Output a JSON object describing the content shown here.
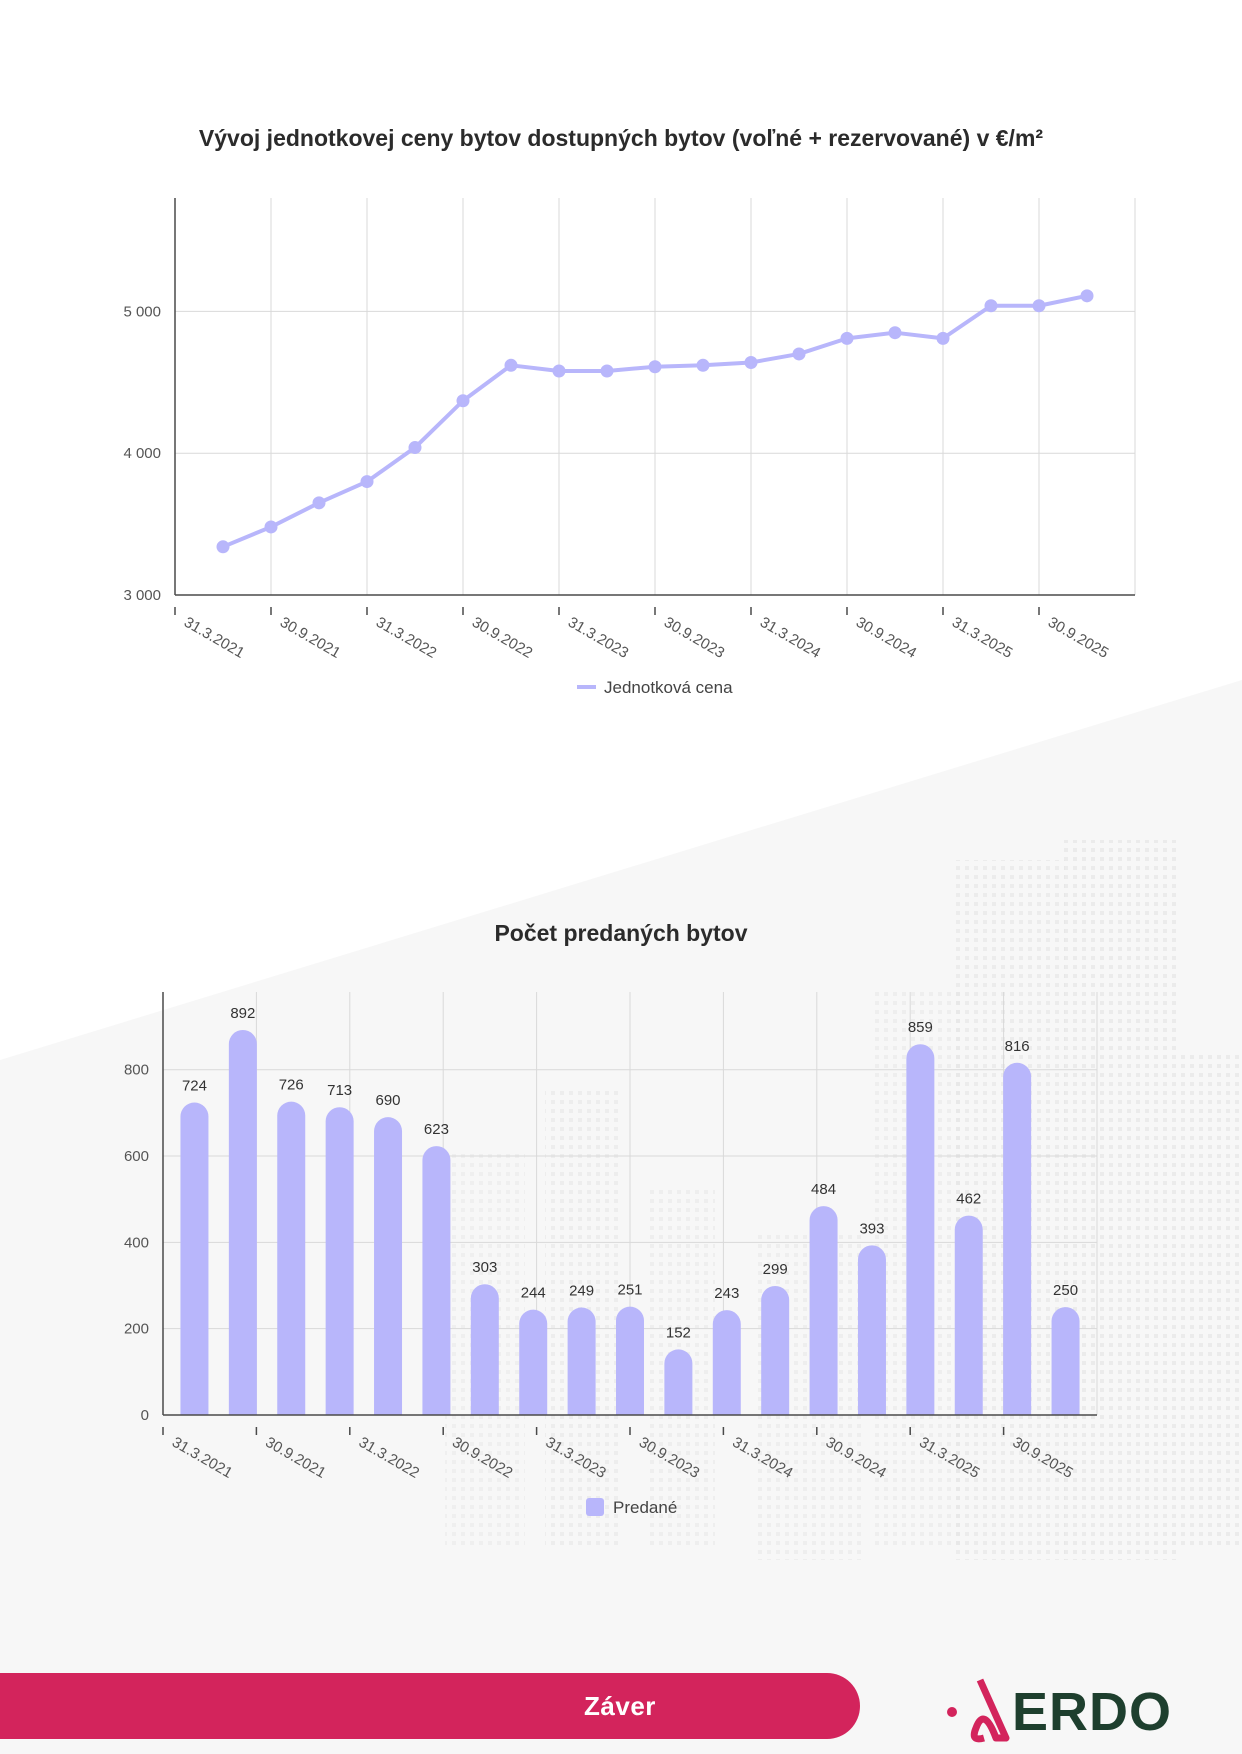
{
  "colors": {
    "series": "#b8b6fb",
    "grid": "#d9d9d9",
    "axis": "#4a4a4a",
    "tick_text": "#555555",
    "label_text": "#333333",
    "footer": "#d3245c",
    "logo_mark": "#d3245c",
    "logo_text": "#1e3f2e"
  },
  "chart_data": [
    {
      "type": "line",
      "title": "Vývoj jednotkovej ceny bytov dostupných bytov (voľné + rezervované) v €/m²",
      "xlabel": "",
      "ylabel": "",
      "x_tick_labels": [
        "31.3.2021",
        "30.9.2021",
        "31.3.2022",
        "30.9.2022",
        "31.3.2023",
        "30.9.2023",
        "31.3.2024",
        "30.9.2024",
        "31.3.2025",
        "30.9.2025"
      ],
      "y_tick_labels": [
        "3 000",
        "4 000",
        "5 000"
      ],
      "y_ticks": [
        3000,
        4000,
        5000
      ],
      "ylim": [
        3000,
        5800
      ],
      "grid": true,
      "legend_position": "bottom",
      "series": [
        {
          "name": "Jednotková cena",
          "values": [
            3340,
            3480,
            3650,
            3800,
            4040,
            4370,
            4620,
            4580,
            4580,
            4610,
            4620,
            4640,
            4700,
            4810,
            4850,
            4810,
            5040,
            5040,
            5110
          ]
        }
      ]
    },
    {
      "type": "bar",
      "title": "Počet predaných bytov",
      "xlabel": "",
      "ylabel": "",
      "x_tick_labels": [
        "31.3.2021",
        "30.9.2021",
        "31.3.2022",
        "30.9.2022",
        "31.3.2023",
        "30.9.2023",
        "31.3.2024",
        "30.9.2024",
        "31.3.2025",
        "30.9.2025"
      ],
      "y_tick_labels": [
        "0",
        "200",
        "400",
        "600",
        "800"
      ],
      "y_ticks": [
        0,
        200,
        400,
        600,
        800
      ],
      "ylim": [
        0,
        980
      ],
      "grid": true,
      "legend_position": "bottom",
      "series": [
        {
          "name": "Predané",
          "values": [
            724,
            892,
            726,
            713,
            690,
            623,
            303,
            244,
            249,
            251,
            152,
            243,
            299,
            484,
            393,
            859,
            462,
            816,
            250
          ],
          "labels": [
            "724",
            "892",
            "726",
            "713",
            "690",
            "623",
            "303",
            "244",
            "249",
            "251",
            "152",
            "243",
            "299",
            "484",
            "393",
            "859",
            "462",
            "816",
            "250"
          ]
        }
      ]
    }
  ],
  "footer": {
    "label": "Záver",
    "logo_text": "ERDO",
    "logo_icon": "erdo-logo-mark-icon"
  }
}
